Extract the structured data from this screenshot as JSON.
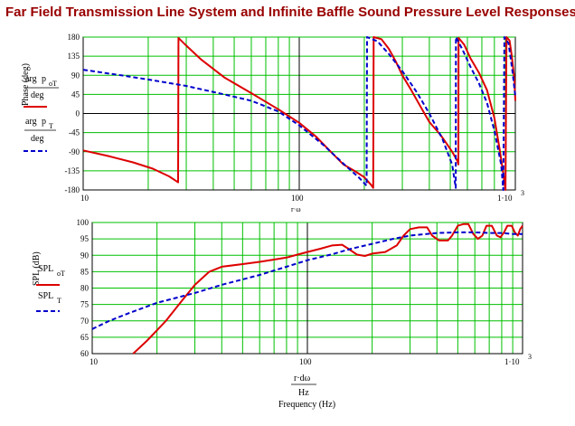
{
  "title": "Far Field Transmission Line System and Infinite Baffle Sound Pressure Level Responses",
  "colors": {
    "title": "#990000",
    "grid": "#00c000",
    "tl": "#dd0000",
    "ib": "#0000cc",
    "frame": "#000000"
  },
  "chart_data": [
    {
      "type": "line",
      "x_scale": "log",
      "xlim": [
        10,
        1000
      ],
      "ylim": [
        -180,
        180
      ],
      "ylabel": "Phase (deg)",
      "x_ticks": [
        "10",
        "100",
        "1·10",
        "3"
      ],
      "y_ticks": [
        "180",
        "135",
        "90",
        "45",
        "0",
        "-45",
        "-90",
        "-135",
        "-180"
      ],
      "legend": {
        "tl_num": "arg",
        "tl_arg": "p",
        "tl_sub": "oT",
        "tl_den": "deg",
        "ib_num": "arg",
        "ib_arg": "p",
        "ib_sub": "T",
        "ib_den": "deg"
      },
      "xlabel_fragment": "r·ω",
      "grid": true,
      "series": [
        {
          "key": "tl",
          "style": "solid",
          "points": [
            [
              10,
              -87
            ],
            [
              13,
              -100
            ],
            [
              17,
              -115
            ],
            [
              21,
              -130
            ],
            [
              25,
              -148
            ],
            [
              27.5,
              -162
            ],
            [
              27.6,
              178
            ],
            [
              30,
              160
            ],
            [
              35,
              128
            ],
            [
              45,
              85
            ],
            [
              60,
              48
            ],
            [
              80,
              10
            ],
            [
              100,
              -22
            ],
            [
              120,
              -55
            ],
            [
              140,
              -90
            ],
            [
              160,
              -120
            ],
            [
              180,
              -135
            ],
            [
              200,
              -150
            ],
            [
              215,
              -168
            ],
            [
              220,
              -175
            ],
            [
              221,
              180
            ],
            [
              240,
              175
            ],
            [
              260,
              152
            ],
            [
              280,
              122
            ],
            [
              300,
              90
            ],
            [
              330,
              55
            ],
            [
              370,
              10
            ],
            [
              400,
              -20
            ],
            [
              450,
              -50
            ],
            [
              480,
              -70
            ],
            [
              510,
              -90
            ],
            [
              540,
              -112
            ],
            [
              545,
              -120
            ],
            [
              546,
              178
            ],
            [
              580,
              162
            ],
            [
              620,
              130
            ],
            [
              680,
              95
            ],
            [
              740,
              55
            ],
            [
              800,
              -10
            ],
            [
              850,
              -90
            ],
            [
              890,
              -160
            ],
            [
              900,
              -180
            ],
            [
              910,
              180
            ],
            [
              940,
              172
            ],
            [
              960,
              140
            ],
            [
              990,
              80
            ],
            [
              1000,
              30
            ]
          ]
        },
        {
          "key": "ib",
          "style": "dashed",
          "points": [
            [
              10,
              103
            ],
            [
              15,
              90
            ],
            [
              20,
              80
            ],
            [
              30,
              65
            ],
            [
              45,
              45
            ],
            [
              60,
              30
            ],
            [
              80,
              5
            ],
            [
              100,
              -28
            ],
            [
              130,
              -75
            ],
            [
              160,
              -118
            ],
            [
              190,
              -152
            ],
            [
              205,
              -170
            ],
            [
              206,
              180
            ],
            [
              230,
              170
            ],
            [
              260,
              140
            ],
            [
              300,
              100
            ],
            [
              350,
              50
            ],
            [
              400,
              0
            ],
            [
              460,
              -60
            ],
            [
              510,
              -120
            ],
            [
              530,
              -175
            ],
            [
              531,
              180
            ],
            [
              570,
              150
            ],
            [
              620,
              110
            ],
            [
              680,
              70
            ],
            [
              740,
              25
            ],
            [
              800,
              -40
            ],
            [
              860,
              -120
            ],
            [
              880,
              -180
            ],
            [
              890,
              180
            ],
            [
              930,
              165
            ],
            [
              970,
              100
            ],
            [
              1000,
              40
            ]
          ]
        }
      ]
    },
    {
      "type": "line",
      "x_scale": "log",
      "xlim": [
        10,
        1000
      ],
      "ylim": [
        60,
        100
      ],
      "ylabel": "SPL (dB)",
      "xlabel": "Frequency (Hz)",
      "xlabel_frac_num": "r·dω",
      "xlabel_frac_den": "Hz",
      "x_ticks": [
        "10",
        "100",
        "1·10",
        "3"
      ],
      "y_ticks": [
        "100",
        "95",
        "90",
        "85",
        "80",
        "75",
        "70",
        "65",
        "60"
      ],
      "legend": {
        "tl_label": "SPL",
        "tl_sub": "oT",
        "ib_label": "SPL",
        "ib_sub": "T"
      },
      "grid": true,
      "series": [
        {
          "key": "tl",
          "style": "solid",
          "points": [
            [
              15.5,
              60
            ],
            [
              18,
              64
            ],
            [
              22,
              70
            ],
            [
              26,
              76
            ],
            [
              30,
              81
            ],
            [
              35,
              85
            ],
            [
              40,
              86.5
            ],
            [
              50,
              87.3
            ],
            [
              60,
              88
            ],
            [
              70,
              88.7
            ],
            [
              80,
              89.3
            ],
            [
              90,
              90.2
            ],
            [
              100,
              91
            ],
            [
              115,
              92
            ],
            [
              130,
              93
            ],
            [
              145,
              93.2
            ],
            [
              155,
              92
            ],
            [
              170,
              90.2
            ],
            [
              185,
              89.8
            ],
            [
              200,
              90.5
            ],
            [
              230,
              91
            ],
            [
              260,
              93
            ],
            [
              280,
              96
            ],
            [
              300,
              98
            ],
            [
              330,
              98.5
            ],
            [
              360,
              98.5
            ],
            [
              380,
              96
            ],
            [
              410,
              94.5
            ],
            [
              450,
              94.5
            ],
            [
              470,
              96
            ],
            [
              500,
              99
            ],
            [
              530,
              99.5
            ],
            [
              560,
              99.5
            ],
            [
              590,
              96.5
            ],
            [
              620,
              95
            ],
            [
              650,
              96
            ],
            [
              680,
              99
            ],
            [
              720,
              99
            ],
            [
              760,
              96
            ],
            [
              790,
              95.5
            ],
            [
              820,
              97
            ],
            [
              850,
              99
            ],
            [
              890,
              99
            ],
            [
              920,
              97
            ],
            [
              950,
              96
            ],
            [
              975,
              98
            ],
            [
              1000,
              99
            ]
          ]
        },
        {
          "key": "ib",
          "style": "dashed",
          "points": [
            [
              10,
              67.5
            ],
            [
              12,
              70
            ],
            [
              15,
              72.5
            ],
            [
              20,
              75.5
            ],
            [
              30,
              78.5
            ],
            [
              40,
              81
            ],
            [
              60,
              84
            ],
            [
              80,
              86.5
            ],
            [
              100,
              88.5
            ],
            [
              130,
              90.3
            ],
            [
              160,
              92
            ],
            [
              200,
              93.5
            ],
            [
              250,
              95
            ],
            [
              300,
              96
            ],
            [
              400,
              96.8
            ],
            [
              500,
              97
            ],
            [
              600,
              97
            ],
            [
              700,
              96.8
            ],
            [
              800,
              96.8
            ],
            [
              900,
              96.5
            ],
            [
              1000,
              96.5
            ]
          ]
        }
      ]
    }
  ]
}
